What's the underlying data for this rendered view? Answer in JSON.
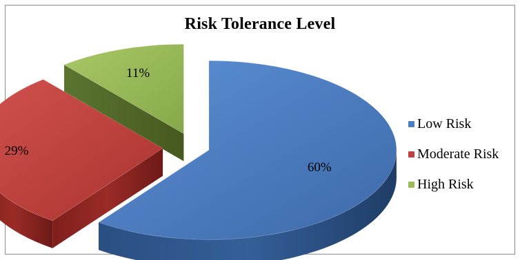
{
  "chart_data": {
    "type": "pie",
    "title": "Risk Tolerance Level",
    "categories": [
      "Low Risk",
      "Moderate Risk",
      "High Risk"
    ],
    "values": [
      60,
      29,
      11
    ],
    "value_labels": [
      "60%",
      "29%",
      "11%"
    ],
    "colors": [
      "#4a7ec4",
      "#c0413d",
      "#9bbb59"
    ],
    "legend_position": "right",
    "style": "3d-exploded"
  }
}
